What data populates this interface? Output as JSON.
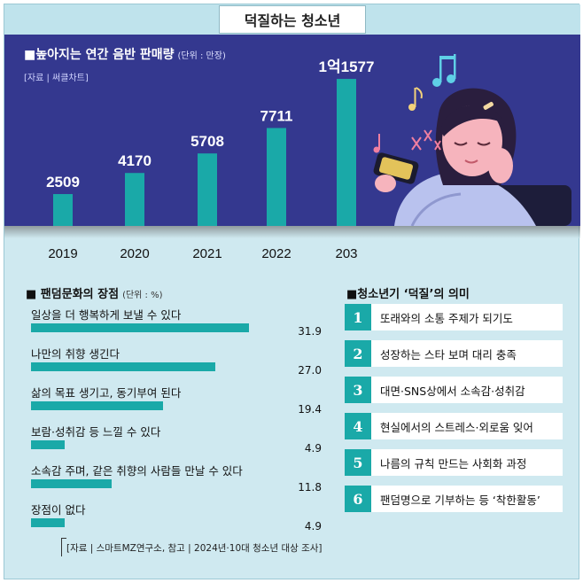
{
  "title": "덕질하는 청소년",
  "colors": {
    "teal": "#1aa9a8",
    "navy": "#34388f",
    "light_bg": "#cfe9f0"
  },
  "chart_data": [
    {
      "type": "bar",
      "title": "■높아지는 연간 음반 판매량",
      "unit": "(단위 : 만장)",
      "source": "[자료 | 써클차트]",
      "categories": [
        "2019",
        "2020",
        "2021",
        "2022",
        "203"
      ],
      "values": [
        2509,
        4170,
        5708,
        7711,
        11577
      ],
      "value_labels": [
        "2509",
        "4170",
        "5708",
        "7711",
        "1억1577"
      ],
      "ylim": [
        0,
        12000
      ]
    },
    {
      "type": "bar",
      "orientation": "horizontal",
      "title": "■ 팬덤문화의 장점",
      "unit": "(단위 : %)",
      "categories": [
        "일상을 더 행복하게 보낼 수 있다",
        "나만의 취향 생긴다",
        "삶의 목표 생기고, 동기부여 된다",
        "보람·성취감 등 느낄 수 있다",
        "소속감 주며, 같은 취향의 사람들 만날 수 있다",
        "장점이 없다"
      ],
      "values": [
        31.9,
        27.0,
        19.4,
        4.9,
        11.8,
        4.9
      ],
      "value_labels": [
        "31.9",
        "27.0",
        "19.4",
        "4.9",
        "11.8",
        "4.9"
      ],
      "xlim": [
        0,
        34
      ],
      "source": "[자료 | 스마트MZ연구소, 참고 | 2024년·10대 청소년 대상 조사]"
    }
  ],
  "meaning": {
    "title": "■청소년기 ‘덕질’의 의미",
    "items": [
      {
        "num": "1",
        "text": "또래와의 소통 주제가 되기도"
      },
      {
        "num": "2",
        "text": "성장하는 스타 보며 대리 충족"
      },
      {
        "num": "3",
        "text": "대면·SNS상에서 소속감·성취감"
      },
      {
        "num": "4",
        "text": "현실에서의 스트레스·외로움 잊어"
      },
      {
        "num": "5",
        "text": "나름의 규칙 만드는 사회화 과정"
      },
      {
        "num": "6",
        "text": "팬덤명으로 기부하는 등 ‘착한활동’"
      }
    ]
  }
}
